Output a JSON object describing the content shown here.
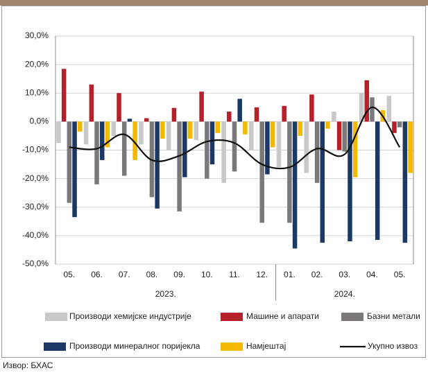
{
  "chart_data": {
    "type": "bar",
    "categories": [
      "05.",
      "06.",
      "07.",
      "08.",
      "09.",
      "10.",
      "11.",
      "12.",
      "01.",
      "02.",
      "03.",
      "04.",
      "05."
    ],
    "x_groups": [
      {
        "label": "2023.",
        "span": 8
      },
      {
        "label": "2024.",
        "span": 5
      }
    ],
    "series": [
      {
        "name": "Производи хемијске индустрије",
        "color": "#c8c8c8",
        "values": [
          -7.5,
          -8,
          -5,
          -8,
          -10,
          -6.5,
          -21.5,
          -10,
          -16,
          -18,
          3.5,
          10,
          9
        ]
      },
      {
        "name": "Машине и апарати",
        "color": "#b5202a",
        "values": [
          18.5,
          13,
          10,
          1.2,
          4.8,
          10.5,
          3.5,
          5,
          5.5,
          9.5,
          -10,
          14.5,
          -4
        ]
      },
      {
        "name": "Базни метали",
        "color": "#7a7878",
        "values": [
          -28.5,
          -22,
          -19,
          -26.5,
          -31.5,
          -20,
          -17.5,
          -35.5,
          -35.5,
          -21.5,
          -10.5,
          8.5,
          -2
        ]
      },
      {
        "name": "Производи минералног поријекла",
        "color": "#1c3864",
        "values": [
          -33.5,
          -13.5,
          1,
          -30.5,
          -19.5,
          -15,
          8,
          -18.5,
          -44.5,
          -42.5,
          -42,
          -41.5,
          -42.5
        ]
      },
      {
        "name": "Намјештај",
        "color": "#f5b800",
        "values": [
          -3.5,
          -9,
          -13.5,
          -6,
          -6,
          -4,
          -4.5,
          -9,
          -5,
          -2.5,
          -19.5,
          4,
          -18
        ]
      },
      {
        "name": "Укупно извоз",
        "color": "#111111",
        "type": "line",
        "values": [
          -9,
          -9.5,
          -4.5,
          -13.5,
          -12,
          -7,
          -7.5,
          -15,
          -16,
          -9.5,
          -11.5,
          5,
          -9
        ]
      }
    ],
    "ylim": [
      -50,
      30
    ],
    "yticks": [
      {
        "value": -50,
        "label": "-50,0%"
      },
      {
        "value": -40,
        "label": "-40,0%"
      },
      {
        "value": -30,
        "label": "-30,0%"
      },
      {
        "value": -20,
        "label": "-20,0%"
      },
      {
        "value": -10,
        "label": "-10,0%"
      },
      {
        "value": 0,
        "label": "0,0%"
      },
      {
        "value": 10,
        "label": "10,0%"
      },
      {
        "value": 20,
        "label": "20,0%"
      },
      {
        "value": 30,
        "label": "30,0%"
      }
    ],
    "grid": true,
    "source": "Извор: БХАС"
  }
}
